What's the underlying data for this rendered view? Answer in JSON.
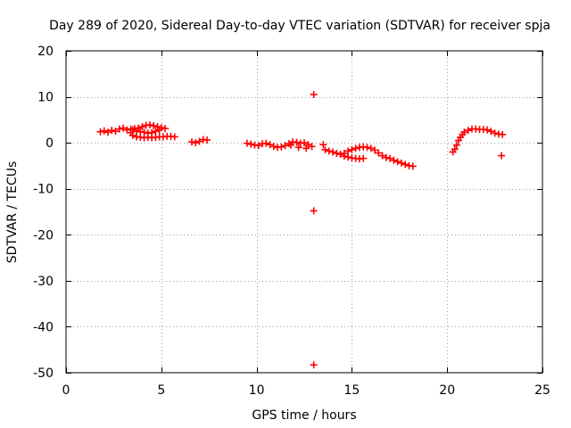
{
  "chart_data": {
    "type": "scatter",
    "title": "Day 289 of 2020, Sidereal Day-to-day VTEC variation (SDTVAR) for receiver spja",
    "xlabel": "GPS time / hours",
    "ylabel": "SDTVAR / TECUs",
    "xlim": [
      0,
      25
    ],
    "ylim": [
      -50,
      20
    ],
    "xticks": [
      0,
      5,
      10,
      15,
      20,
      25
    ],
    "yticks": [
      20,
      10,
      0,
      -10,
      -20,
      -30,
      -40,
      -50
    ],
    "grid": true,
    "marker": "+",
    "marker_color": "#ff0000",
    "series": [
      {
        "values": [
          [
            1.8,
            2.4
          ],
          [
            2.0,
            2.6
          ],
          [
            2.2,
            2.3
          ],
          [
            2.4,
            2.7
          ],
          [
            2.6,
            2.5
          ],
          [
            2.8,
            3.0
          ],
          [
            3.0,
            3.2
          ],
          [
            3.2,
            2.8
          ],
          [
            3.4,
            2.2
          ],
          [
            3.5,
            1.6
          ],
          [
            3.7,
            1.3
          ],
          [
            3.9,
            1.2
          ],
          [
            4.1,
            1.1
          ],
          [
            4.3,
            1.2
          ],
          [
            4.5,
            1.1
          ],
          [
            4.7,
            1.2
          ],
          [
            4.9,
            1.3
          ],
          [
            5.1,
            1.3
          ],
          [
            5.3,
            1.4
          ],
          [
            5.5,
            1.4
          ],
          [
            5.7,
            1.3
          ],
          [
            3.4,
            3.0
          ],
          [
            3.6,
            3.1
          ],
          [
            3.8,
            3.2
          ],
          [
            4.0,
            3.5
          ],
          [
            4.2,
            3.8
          ],
          [
            4.4,
            3.9
          ],
          [
            4.6,
            3.7
          ],
          [
            4.8,
            3.5
          ],
          [
            5.0,
            3.3
          ],
          [
            5.2,
            3.1
          ],
          [
            3.5,
            2.8
          ],
          [
            3.7,
            2.6
          ],
          [
            3.9,
            2.4
          ],
          [
            4.1,
            2.3
          ],
          [
            4.3,
            2.1
          ],
          [
            4.5,
            2.2
          ],
          [
            4.7,
            2.5
          ],
          [
            4.9,
            2.8
          ],
          [
            6.6,
            0.2
          ],
          [
            6.8,
            0.0
          ],
          [
            7.0,
            0.3
          ],
          [
            7.2,
            0.7
          ],
          [
            7.4,
            0.6
          ],
          [
            9.5,
            -0.1
          ],
          [
            9.7,
            -0.3
          ],
          [
            9.9,
            -0.5
          ],
          [
            10.1,
            -0.6
          ],
          [
            10.3,
            -0.2
          ],
          [
            10.5,
            -0.1
          ],
          [
            10.7,
            -0.4
          ],
          [
            10.9,
            -0.8
          ],
          [
            11.1,
            -1.0
          ],
          [
            11.3,
            -0.9
          ],
          [
            11.5,
            -0.6
          ],
          [
            11.7,
            -0.2
          ],
          [
            11.9,
            0.2
          ],
          [
            12.1,
            0.1
          ],
          [
            12.3,
            -0.1
          ],
          [
            12.5,
            0.0
          ],
          [
            12.7,
            -0.4
          ],
          [
            12.9,
            -0.8
          ],
          [
            11.8,
            -0.5
          ],
          [
            12.2,
            -1.0
          ],
          [
            12.6,
            -1.2
          ],
          [
            13.0,
            10.5
          ],
          [
            13.0,
            -14.8
          ],
          [
            13.0,
            -48.3
          ],
          [
            13.5,
            -0.4
          ],
          [
            13.6,
            -1.5
          ],
          [
            13.8,
            -1.8
          ],
          [
            14.0,
            -2.0
          ],
          [
            14.2,
            -2.3
          ],
          [
            14.4,
            -2.5
          ],
          [
            14.6,
            -2.3
          ],
          [
            14.8,
            -1.8
          ],
          [
            15.0,
            -1.5
          ],
          [
            15.2,
            -1.2
          ],
          [
            15.4,
            -1.0
          ],
          [
            15.6,
            -0.9
          ],
          [
            15.8,
            -1.0
          ],
          [
            16.0,
            -1.2
          ],
          [
            16.2,
            -1.6
          ],
          [
            16.4,
            -2.2
          ],
          [
            16.6,
            -2.8
          ],
          [
            16.8,
            -3.2
          ],
          [
            17.0,
            -3.4
          ],
          [
            17.2,
            -3.8
          ],
          [
            17.4,
            -4.1
          ],
          [
            17.6,
            -4.4
          ],
          [
            17.8,
            -4.7
          ],
          [
            18.0,
            -5.0
          ],
          [
            18.2,
            -5.1
          ],
          [
            14.6,
            -2.9
          ],
          [
            14.8,
            -3.1
          ],
          [
            15.0,
            -3.3
          ],
          [
            15.2,
            -3.4
          ],
          [
            15.4,
            -3.5
          ],
          [
            15.6,
            -3.4
          ],
          [
            20.3,
            -2.0
          ],
          [
            20.4,
            -1.4
          ],
          [
            20.5,
            -0.5
          ],
          [
            20.6,
            0.5
          ],
          [
            20.7,
            1.2
          ],
          [
            20.8,
            1.8
          ],
          [
            20.9,
            2.3
          ],
          [
            21.1,
            2.7
          ],
          [
            21.3,
            3.0
          ],
          [
            21.5,
            3.0
          ],
          [
            21.7,
            2.9
          ],
          [
            21.9,
            2.9
          ],
          [
            22.1,
            2.8
          ],
          [
            22.3,
            2.5
          ],
          [
            22.5,
            2.1
          ],
          [
            22.7,
            1.9
          ],
          [
            22.9,
            1.8
          ],
          [
            22.85,
            -2.8
          ]
        ]
      }
    ]
  }
}
